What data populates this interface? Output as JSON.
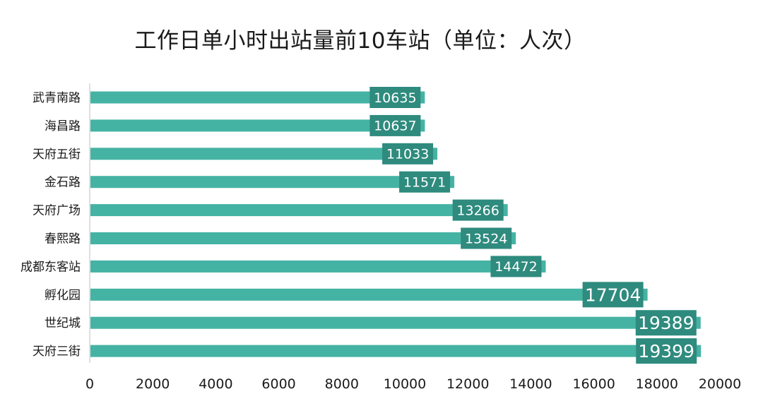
{
  "chart_data": {
    "type": "bar",
    "orientation": "horizontal",
    "title": "工作日单小时出站量前10车站（单位：人次）",
    "categories": [
      "武青南路",
      "海昌路",
      "天府五街",
      "金石路",
      "天府广场",
      "春熙路",
      "成都东客站",
      "孵化园",
      "世纪城",
      "天府三街"
    ],
    "values": [
      10635,
      10637,
      11033,
      11571,
      13266,
      13524,
      14472,
      17704,
      19389,
      19399
    ],
    "x_ticks": [
      "0",
      "2000",
      "4000",
      "6000",
      "8000",
      "10000",
      "12000",
      "14000",
      "16000",
      "18000",
      "20000"
    ],
    "xlim": [
      0,
      20000
    ],
    "grid": false,
    "legend": "none",
    "colors": {
      "bar": "#45b3a4",
      "label_box": "#2e8b7e"
    }
  }
}
